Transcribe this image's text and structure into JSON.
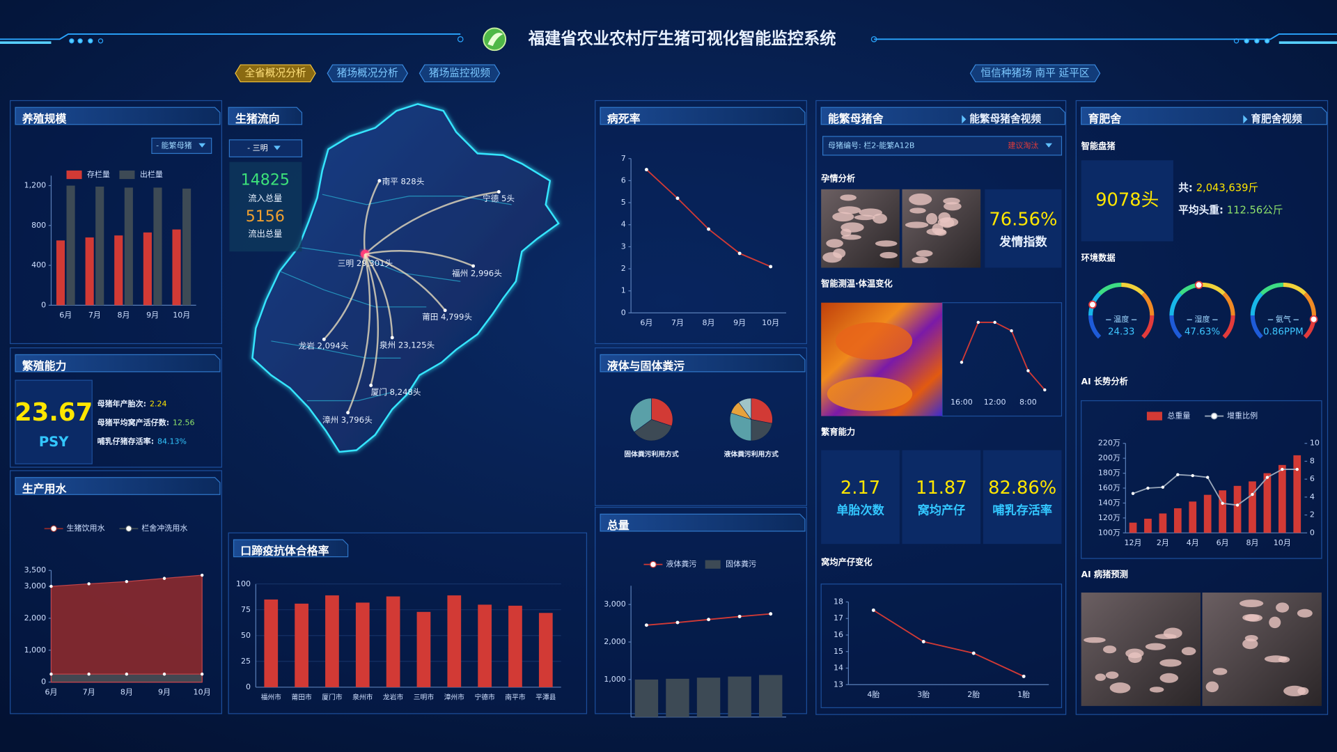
{
  "header": {
    "title": "福建省农业农村厅生猪可视化智能监控系统"
  },
  "tabs": [
    "全省概况分析",
    "猪场概况分析",
    "猪场监控视频"
  ],
  "farm": "恒信种猪场 南平 延平区",
  "chart_data": [
    {
      "type": "bar",
      "title": "养殖规模",
      "dropdown": "- 能繁母猪",
      "categories": [
        "6月",
        "7月",
        "8月",
        "9月",
        "10月"
      ],
      "series": [
        {
          "name": "存栏量",
          "color": "#d23a35",
          "values": [
            650,
            680,
            700,
            730,
            760
          ]
        },
        {
          "name": "出栏量",
          "color": "#3d4a55",
          "values": [
            1200,
            1190,
            1180,
            1180,
            1170
          ]
        }
      ],
      "ylim": [
        0,
        1300
      ],
      "yticks": [
        0,
        400,
        800,
        {
          "value": 1200,
          "label": "1,200"
        }
      ],
      "grid": false
    },
    {
      "type": "area",
      "title": "生产用水",
      "categories": [
        "6月",
        "7月",
        "8月",
        "9月",
        "10月"
      ],
      "series": [
        {
          "name": "生猪饮用水",
          "color": "#8b2a2d",
          "values": [
            3000,
            3080,
            3150,
            3250,
            3350
          ]
        },
        {
          "name": "栏舍冲洗用水",
          "color": "#3d4a55",
          "values": [
            250,
            250,
            250,
            250,
            250
          ]
        }
      ],
      "ylim": [
        0,
        3500
      ],
      "yticks": [
        0,
        {
          "value": 1000,
          "label": "1,000"
        },
        {
          "value": 2000,
          "label": "2,000"
        },
        {
          "value": 3000,
          "label": "3,000"
        },
        {
          "value": 3500,
          "label": "3,500"
        }
      ],
      "grid": false
    },
    {
      "type": "bar",
      "title": "口蹄疫抗体合格率",
      "categories": [
        "福州市",
        "莆田市",
        "厦门市",
        "泉州市",
        "龙岩市",
        "三明市",
        "漳州市",
        "宁德市",
        "南平市",
        "平潭县"
      ],
      "values": [
        85,
        81,
        89,
        82,
        88,
        73,
        89,
        80,
        79,
        72
      ],
      "color": "#d23a35",
      "ylim": [
        0,
        100
      ],
      "yticks": [
        0,
        25,
        50,
        75,
        100
      ],
      "grid": true
    },
    {
      "type": "line",
      "title": "病死率",
      "categories": [
        "6月",
        "7月",
        "8月",
        "9月",
        "10月"
      ],
      "values": [
        6.5,
        5.2,
        3.8,
        2.7,
        2.1
      ],
      "color": "#d23a35",
      "ylim": [
        0,
        7
      ],
      "yticks": [
        0,
        1,
        2,
        3,
        4,
        5,
        6,
        7
      ],
      "grid": false
    },
    {
      "type": "pie",
      "title": "液体与固体粪污",
      "pies": [
        {
          "name": "固体粪污利用方式",
          "values": [
            30,
            35,
            35
          ],
          "colors": [
            "#d23a35",
            "#3d4a55",
            "#5aa0a8"
          ]
        },
        {
          "name": "液体粪污利用方式",
          "values": [
            28,
            22,
            30,
            10,
            10
          ],
          "colors": [
            "#d23a35",
            "#3d4a55",
            "#5aa0a8",
            "#e6a23c",
            "#a0c4c8"
          ]
        }
      ]
    },
    {
      "type": "combo",
      "title": "总量",
      "categories": [
        null,
        null,
        null,
        null,
        null
      ],
      "series": [
        {
          "name": "液体粪污",
          "type": "line",
          "color": "#d23a35",
          "values": [
            2450,
            2520,
            2600,
            2680,
            2750
          ]
        },
        {
          "name": "固体粪污",
          "type": "bar",
          "color": "#3d4a55",
          "values": [
            1000,
            1020,
            1050,
            1080,
            1120
          ]
        }
      ],
      "ylim": [
        0,
        3500
      ],
      "yticks": [
        {
          "value": 1000,
          "label": "1,000"
        },
        {
          "value": 2000,
          "label": "2,000"
        },
        {
          "value": 3000,
          "label": "3,000"
        }
      ],
      "grid": false
    },
    {
      "type": "line",
      "title": "智能测温·体温变化",
      "categories": [
        "16:00",
        null,
        "12:00",
        null,
        "8:00",
        null
      ],
      "values": [
        3.9,
        9.1,
        9.1,
        8.0,
        2.8,
        0.3
      ],
      "color": "#d23a35",
      "ylim": [
        0,
        10
      ]
    },
    {
      "type": "line",
      "title": "窝均产仔变化",
      "categories": [
        "4胎",
        "3胎",
        "2胎",
        "1胎"
      ],
      "values": [
        17.5,
        15.6,
        14.9,
        13.5
      ],
      "color": "#d23a35",
      "ylim": [
        13,
        18
      ],
      "yticks": [
        13,
        14,
        15,
        16,
        17,
        18
      ],
      "grid": false
    },
    {
      "type": "gauge",
      "title": "环境数据",
      "gauges": [
        {
          "name": "温度",
          "value": 24.33,
          "lim": [
            0,
            100
          ],
          "color": "#3ec6ff"
        },
        {
          "name": "湿度",
          "value": 47.63,
          "value_label": "47.63%",
          "lim": [
            0,
            100
          ],
          "color": "#3ec6ff"
        },
        {
          "name": "氨气",
          "value": 0.86,
          "value_label": "0.86PPM",
          "lim": [
            0,
            1
          ],
          "color": "#3ec6ff"
        }
      ]
    },
    {
      "type": "combo",
      "title": "AI 长势分析",
      "categories": [
        "12月",
        null,
        "2月",
        null,
        "4月",
        null,
        "6月",
        null,
        "8月",
        null,
        "10月",
        null
      ],
      "series": [
        {
          "name": "总重量",
          "type": "bar",
          "color": "#d23a35",
          "values": [
            113.7,
            119,
            126,
            133,
            142,
            151,
            157,
            163,
            169,
            180,
            191,
            204
          ]
        },
        {
          "name": "增重比例",
          "type": "line",
          "axis": "y2",
          "color": "#9aa8bb",
          "values": [
            4.4,
            5.0,
            5.1,
            6.5,
            6.4,
            6.2,
            3.3,
            3.1,
            4.3,
            6.2,
            7.1,
            7.1
          ]
        }
      ],
      "ylim": [
        100,
        220
      ],
      "yticks": [
        {
          "value": 100,
          "label": "100万"
        },
        {
          "value": 120,
          "label": "120万"
        },
        {
          "value": 140,
          "label": "140万"
        },
        {
          "value": 160,
          "label": "160万"
        },
        {
          "value": 180,
          "label": "180万"
        },
        {
          "value": 200,
          "label": "200万"
        },
        {
          "value": 220,
          "label": "220万"
        }
      ],
      "y2lim": [
        0,
        10
      ],
      "y2ticks": [
        0,
        2,
        4,
        6,
        8,
        10
      ],
      "grid": false
    }
  ],
  "map": {
    "title": "生猪流向",
    "dropdown": "- 三明",
    "inflow": 14825,
    "inflow_label": "流入总量",
    "outflow": 5156,
    "outflow_label": "流出总量",
    "cities": [
      "南平 828头",
      "宁德 5头",
      "三明 29,301头",
      "福州 2,996头",
      "莆田 4,799头",
      "泉州 23,125头",
      "龙岩 2,094头",
      "厦门 8,248头",
      "漳州 3,796头"
    ]
  },
  "breeding": {
    "title": "繁殖能力",
    "psy": 23.67,
    "psy_unit": "PSY",
    "items": [
      {
        "label": "母猪年产胎次:",
        "value": 2.24
      },
      {
        "label": "母猪平均窝产活仔数:",
        "value": 12.56
      },
      {
        "label": "哺乳仔猪存活率:",
        "value": "84.13%"
      }
    ]
  },
  "sow_house": {
    "title": "能繁母猪舍",
    "video": "能繁母猪舍视频",
    "select": "母猪编号: 栏2-能繁A12B",
    "advice": "建议淘汰",
    "pregnancy": "孕情分析",
    "estrus_value": "76.56%",
    "estrus_label": "发情指数",
    "breeding_title": "繁育能力",
    "stats": [
      {
        "value": 2.17,
        "label": "单胎次数"
      },
      {
        "value": 11.87,
        "label": "窝均产仔"
      },
      {
        "value": "82.86%",
        "label": "哺乳存活率"
      }
    ]
  },
  "fattening": {
    "title": "育肥舍",
    "video": "育肥舍视频",
    "count_title": "智能盘猪",
    "count": "9078头",
    "total_label": "共:",
    "total": "2,043,639斤",
    "avg_label": "平均头重:",
    "avg": "112.56公斤",
    "ai_disease": "AI 病猪预测"
  }
}
